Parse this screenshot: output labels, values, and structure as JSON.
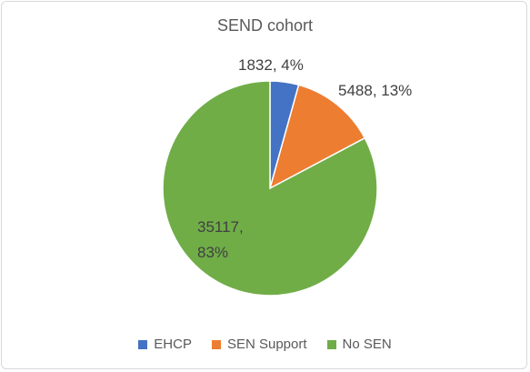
{
  "chart_data": {
    "type": "pie",
    "title": "SEND cohort",
    "categories": [
      "EHCP",
      "SEN Support",
      "No SEN"
    ],
    "values": [
      1832,
      5488,
      35117
    ],
    "value_labels": [
      "1832, 4%",
      "5488, 13%",
      "35117, 83%"
    ],
    "colors": [
      "#4472c4",
      "#ed7d31",
      "#70ad47"
    ],
    "legend": "bottom"
  }
}
